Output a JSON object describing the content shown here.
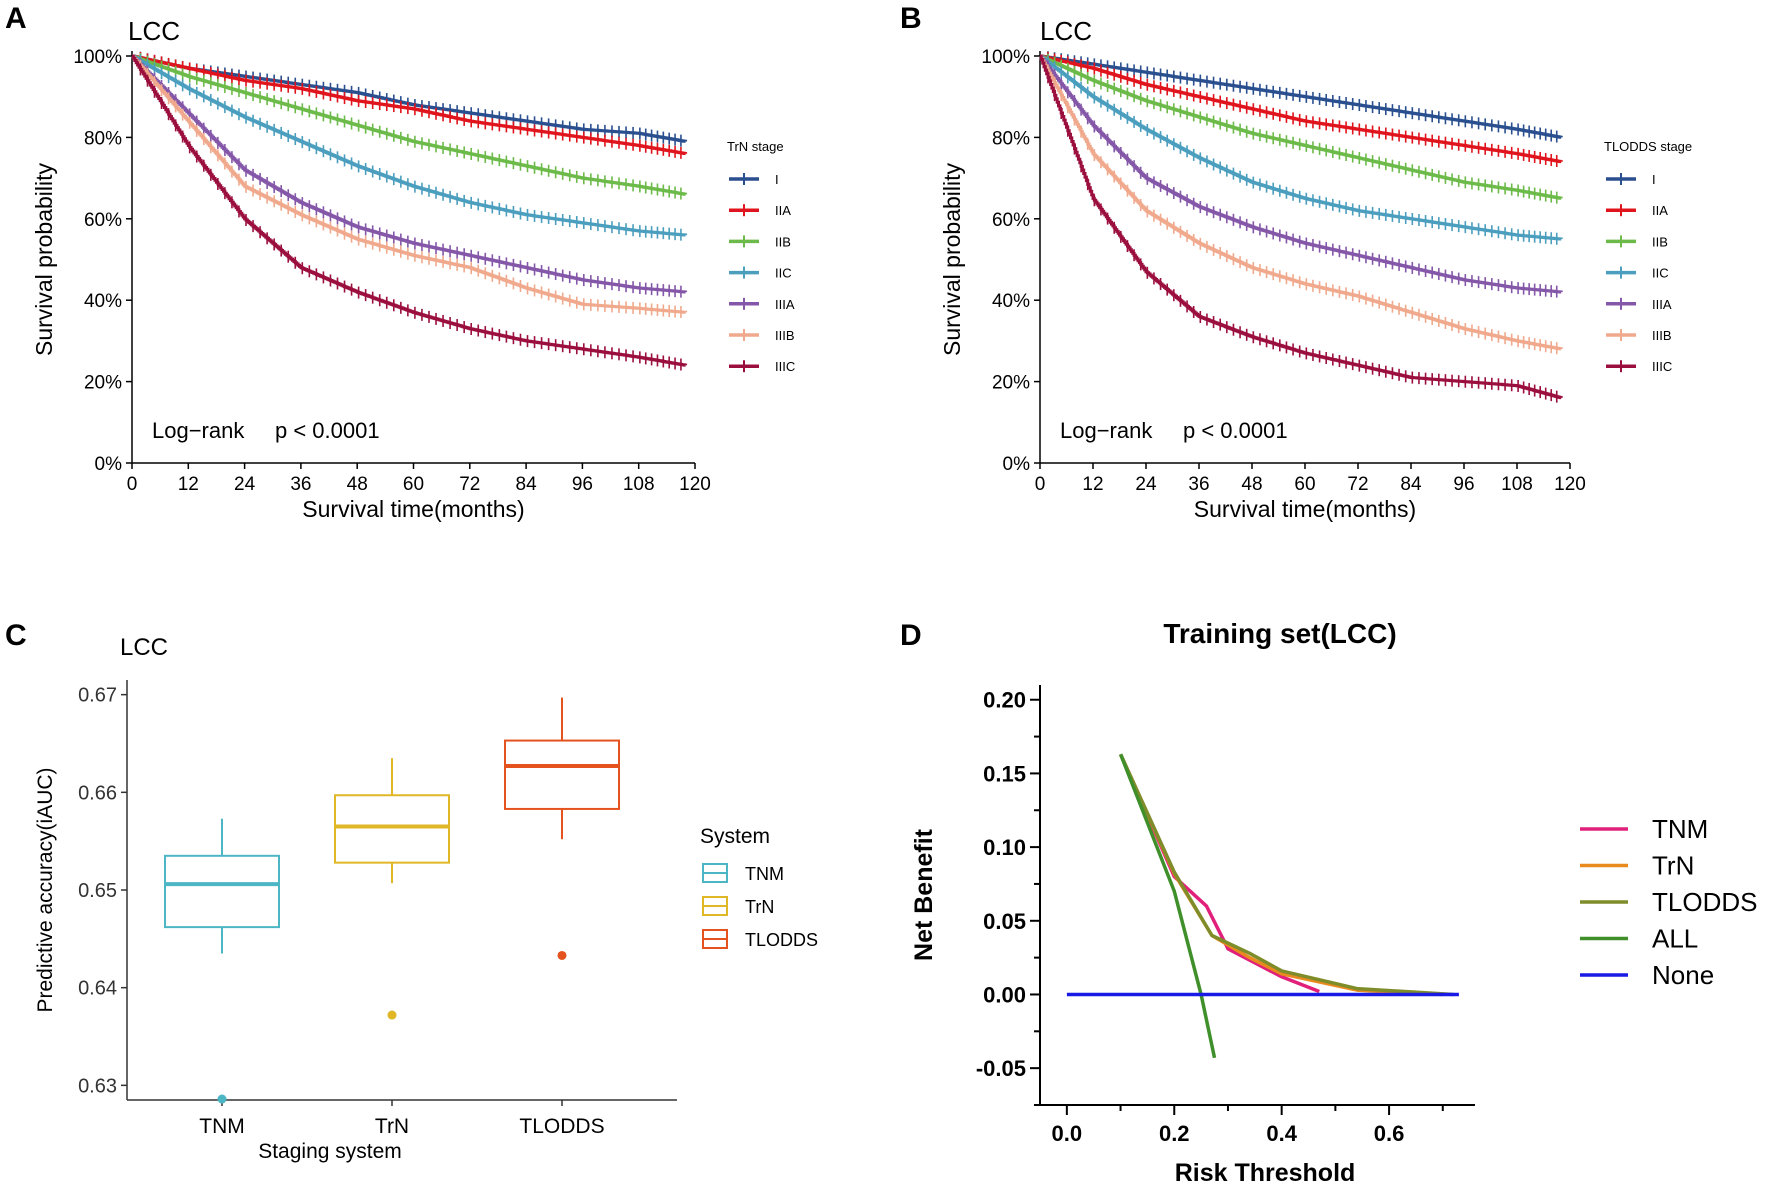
{
  "colors": {
    "km": {
      "I": "#2a4f8f",
      "IIA": "#e0141c",
      "IIB": "#6cba49",
      "IIC": "#4b9ebe",
      "IIIA": "#8457a8",
      "IIIB": "#f0a98c",
      "IIIC": "#9b0f3f"
    },
    "box": {
      "TNM": "#4db6c4",
      "TrN": "#e0b726",
      "TLODDS": "#e4521e"
    },
    "dca": {
      "TNM": "#e0207a",
      "TrN": "#e88a1e",
      "TLODDS": "#7f8c2a",
      "ALL": "#3f8f2a",
      "None": "#1a1ae6"
    }
  },
  "panels": {
    "A": {
      "letter": "A",
      "subtitle": "LCC"
    },
    "B": {
      "letter": "B",
      "subtitle": "LCC"
    },
    "C": {
      "letter": "C",
      "subtitle": "LCC"
    },
    "D": {
      "letter": "D",
      "title": "Training set(LCC)"
    }
  },
  "chart_data": [
    {
      "id": "A",
      "type": "line",
      "subtitle": "LCC",
      "xlabel": "Survival time(months)",
      "ylabel": "Survival probability",
      "xlim": [
        0,
        120
      ],
      "ylim": [
        0,
        100
      ],
      "xticks": [
        "0",
        "12",
        "24",
        "36",
        "48",
        "60",
        "72",
        "84",
        "96",
        "108",
        "120"
      ],
      "yticks": [
        "0%",
        "20%",
        "40%",
        "60%",
        "80%",
        "100%"
      ],
      "legend_title": "TrN stage",
      "annotation": {
        "label": "Log−rank",
        "p": "p < 0.0001"
      },
      "x": [
        0,
        12,
        24,
        36,
        48,
        60,
        72,
        84,
        96,
        108,
        118
      ],
      "series": [
        {
          "name": "I",
          "values": [
            100,
            97,
            95,
            93,
            91,
            88,
            86,
            84,
            82,
            81,
            79
          ]
        },
        {
          "name": "IIA",
          "values": [
            100,
            97,
            94,
            92,
            89,
            87,
            84,
            82,
            80,
            78,
            76
          ]
        },
        {
          "name": "IIB",
          "values": [
            100,
            95,
            91,
            87,
            83,
            79,
            76,
            73,
            70,
            68,
            66
          ]
        },
        {
          "name": "IIC",
          "values": [
            100,
            92,
            85,
            79,
            73,
            68,
            64,
            61,
            59,
            57,
            56
          ]
        },
        {
          "name": "IIIA",
          "values": [
            100,
            86,
            72,
            64,
            58,
            54,
            51,
            48,
            45,
            43,
            42
          ]
        },
        {
          "name": "IIIB",
          "values": [
            100,
            84,
            68,
            61,
            55,
            51,
            48,
            43,
            39,
            38,
            37
          ]
        },
        {
          "name": "IIIC",
          "values": [
            100,
            78,
            60,
            48,
            42,
            37,
            33,
            30,
            28,
            26,
            24
          ]
        }
      ]
    },
    {
      "id": "B",
      "type": "line",
      "subtitle": "LCC",
      "xlabel": "Survival time(months)",
      "ylabel": "Survival probability",
      "xlim": [
        0,
        120
      ],
      "ylim": [
        0,
        100
      ],
      "xticks": [
        "0",
        "12",
        "24",
        "36",
        "48",
        "60",
        "72",
        "84",
        "96",
        "108",
        "120"
      ],
      "yticks": [
        "0%",
        "20%",
        "40%",
        "60%",
        "80%",
        "100%"
      ],
      "legend_title": "TLODDS stage",
      "annotation": {
        "label": "Log−rank",
        "p": "p < 0.0001"
      },
      "x": [
        0,
        12,
        24,
        36,
        48,
        60,
        72,
        84,
        96,
        108,
        118
      ],
      "series": [
        {
          "name": "I",
          "values": [
            100,
            98,
            96,
            94,
            92,
            90,
            88,
            86,
            84,
            82,
            80
          ]
        },
        {
          "name": "IIA",
          "values": [
            100,
            97,
            93,
            90,
            87,
            84,
            82,
            80,
            78,
            76,
            74
          ]
        },
        {
          "name": "IIB",
          "values": [
            100,
            94,
            89,
            85,
            81,
            78,
            75,
            72,
            69,
            67,
            65
          ]
        },
        {
          "name": "IIC",
          "values": [
            100,
            90,
            82,
            75,
            69,
            65,
            62,
            60,
            58,
            56,
            55
          ]
        },
        {
          "name": "IIIA",
          "values": [
            100,
            83,
            70,
            63,
            58,
            54,
            51,
            48,
            45,
            43,
            42
          ]
        },
        {
          "name": "IIIB",
          "values": [
            100,
            76,
            62,
            54,
            48,
            44,
            41,
            37,
            33,
            30,
            28
          ]
        },
        {
          "name": "IIIC",
          "values": [
            100,
            65,
            47,
            36,
            31,
            27,
            24,
            21,
            20,
            19,
            16
          ]
        }
      ]
    },
    {
      "id": "C",
      "type": "box",
      "subtitle": "LCC",
      "xlabel": "Staging system",
      "ylabel": "Predictive accuracy(iAUC)",
      "ylim": [
        0.6285,
        0.6715
      ],
      "yticks": [
        "0.63",
        "0.64",
        "0.65",
        "0.66",
        "0.67"
      ],
      "categories": [
        "TNM",
        "TrN",
        "TLODDS"
      ],
      "legend_title": "System",
      "boxes": [
        {
          "name": "TNM",
          "min": 0.6435,
          "q1": 0.6462,
          "median": 0.6506,
          "q3": 0.6535,
          "max": 0.6573,
          "outliers": [
            0.6286
          ]
        },
        {
          "name": "TrN",
          "min": 0.6507,
          "q1": 0.6528,
          "median": 0.6565,
          "q3": 0.6597,
          "max": 0.6635,
          "outliers": [
            0.6372
          ]
        },
        {
          "name": "TLODDS",
          "min": 0.6552,
          "q1": 0.6583,
          "median": 0.6627,
          "q3": 0.6653,
          "max": 0.6697,
          "outliers": [
            0.6433
          ]
        }
      ]
    },
    {
      "id": "D",
      "type": "line",
      "title": "Training set(LCC)",
      "xlabel": "Risk Threshold",
      "ylabel": "Net Benefit",
      "xlim": [
        -0.05,
        0.76
      ],
      "ylim": [
        -0.075,
        0.21
      ],
      "xticks": [
        "0.0",
        "0.2",
        "0.4",
        "0.6"
      ],
      "yticks": [
        "-0.05",
        "0.00",
        "0.05",
        "0.10",
        "0.15",
        "0.20"
      ],
      "series": [
        {
          "name": "TNM",
          "x": [
            0.1,
            0.2,
            0.26,
            0.3,
            0.4,
            0.47
          ],
          "y": [
            0.163,
            0.08,
            0.06,
            0.031,
            0.012,
            0.002
          ]
        },
        {
          "name": "TrN",
          "x": [
            0.1,
            0.2,
            0.27,
            0.34,
            0.4,
            0.54,
            0.7
          ],
          "y": [
            0.163,
            0.082,
            0.04,
            0.025,
            0.014,
            0.003,
            0.0
          ]
        },
        {
          "name": "TLODDS",
          "x": [
            0.1,
            0.2,
            0.27,
            0.34,
            0.4,
            0.54,
            0.72
          ],
          "y": [
            0.163,
            0.083,
            0.04,
            0.028,
            0.016,
            0.004,
            0.0
          ]
        },
        {
          "name": "ALL",
          "x": [
            0.1,
            0.2,
            0.25,
            0.275
          ],
          "y": [
            0.163,
            0.07,
            0.0,
            -0.043
          ]
        },
        {
          "name": "None",
          "x": [
            0.0,
            0.73
          ],
          "y": [
            0.0,
            0.0
          ]
        }
      ]
    }
  ]
}
